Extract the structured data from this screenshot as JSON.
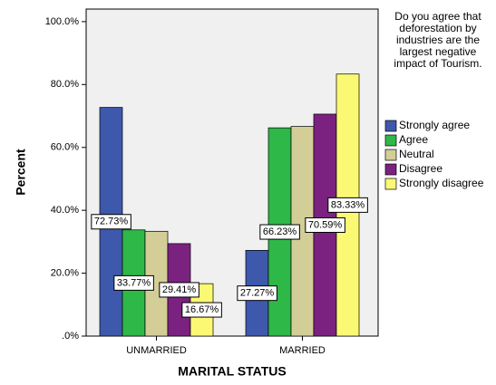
{
  "chart_data": {
    "type": "bar",
    "x_label": "MARITAL STATUS",
    "y_label": "Percent",
    "legend_title": "Do you agree that deforestation by industries are the largest negative impact of Tourism.",
    "categories": [
      "UNMARRIED",
      "MARRIED"
    ],
    "series": [
      {
        "name": "Strongly agree",
        "color": "#3e58ac",
        "values": [
          72.73,
          27.27
        ],
        "value_labels": [
          "72.73%",
          "27.27%"
        ]
      },
      {
        "name": "Agree",
        "color": "#2eb848",
        "values": [
          33.77,
          66.23
        ],
        "value_labels": [
          "33.77%",
          "66.23%"
        ]
      },
      {
        "name": "Neutral",
        "color": "#d3ce97",
        "values": [
          33.33,
          66.67
        ]
      },
      {
        "name": "Disagree",
        "color": "#7b2280",
        "values": [
          29.41,
          70.59
        ],
        "value_labels": [
          "29.41%",
          "70.59%"
        ]
      },
      {
        "name": "Strongly disagree",
        "color": "#fbf873",
        "values": [
          16.67,
          83.33
        ],
        "value_labels": [
          "16.67%",
          "83.33%"
        ]
      }
    ],
    "ylim": [
      0,
      104
    ],
    "yticks": [
      {
        "value": 0,
        "label": ".0%"
      },
      {
        "value": 20,
        "label": "20.0%"
      },
      {
        "value": 40,
        "label": "40.0%"
      },
      {
        "value": 60,
        "label": "60.0%"
      },
      {
        "value": 80,
        "label": "80.0%"
      },
      {
        "value": 100,
        "label": "100.0%"
      }
    ],
    "legend": "right"
  }
}
